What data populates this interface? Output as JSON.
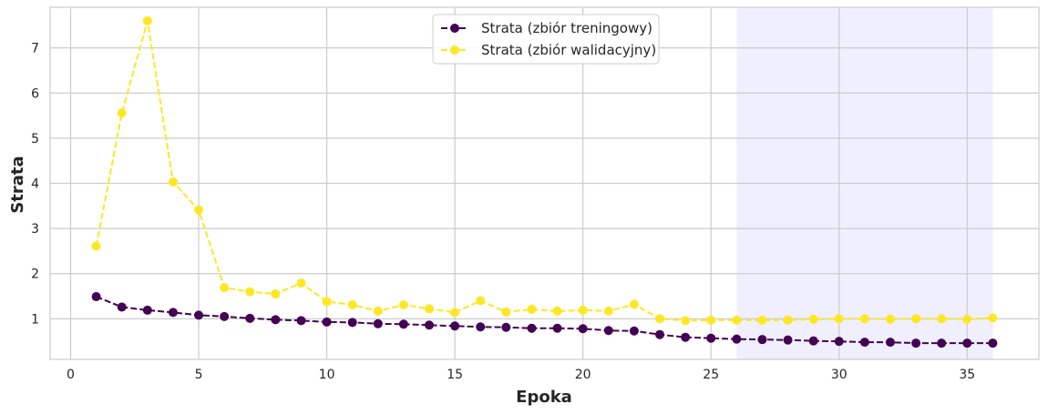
{
  "chart_data": {
    "type": "line",
    "xlabel": "Epoka",
    "ylabel": "Strata",
    "xlim": [
      -0.8,
      37.8
    ],
    "ylim": [
      0.1,
      7.9
    ],
    "xticks": [
      0,
      5,
      10,
      15,
      20,
      25,
      30,
      35
    ],
    "yticks": [
      1,
      2,
      3,
      4,
      5,
      6,
      7
    ],
    "grid": true,
    "legend_position": "top-center",
    "highlight_region": {
      "x_from": 26,
      "x_to": 36,
      "color": "#e8e8ff"
    },
    "x": [
      1,
      2,
      3,
      4,
      5,
      6,
      7,
      8,
      9,
      10,
      11,
      12,
      13,
      14,
      15,
      16,
      17,
      18,
      19,
      20,
      21,
      22,
      23,
      24,
      25,
      26,
      27,
      28,
      29,
      30,
      31,
      32,
      33,
      34,
      35,
      36
    ],
    "series": [
      {
        "name": "Strata (zbiór treningowy)",
        "color": "#440154",
        "line_style": "dashed",
        "marker": "circle",
        "values": [
          1.49,
          1.26,
          1.19,
          1.14,
          1.08,
          1.05,
          1.01,
          0.98,
          0.96,
          0.93,
          0.92,
          0.89,
          0.88,
          0.86,
          0.84,
          0.82,
          0.81,
          0.79,
          0.79,
          0.78,
          0.74,
          0.73,
          0.65,
          0.59,
          0.57,
          0.55,
          0.54,
          0.53,
          0.51,
          0.5,
          0.48,
          0.48,
          0.46,
          0.46,
          0.46,
          0.46
        ]
      },
      {
        "name": "Strata (zbiór walidacyjny)",
        "color": "#fde725",
        "line_style": "dashed",
        "marker": "circle",
        "values": [
          2.61,
          5.56,
          7.6,
          4.03,
          3.41,
          1.69,
          1.6,
          1.55,
          1.79,
          1.38,
          1.31,
          1.17,
          1.31,
          1.22,
          1.14,
          1.4,
          1.15,
          1.21,
          1.17,
          1.19,
          1.17,
          1.32,
          1.0,
          0.96,
          0.97,
          0.97,
          0.97,
          0.97,
          0.99,
          1.0,
          1.0,
          0.99,
          1.0,
          1.0,
          0.99,
          1.02
        ]
      }
    ]
  }
}
